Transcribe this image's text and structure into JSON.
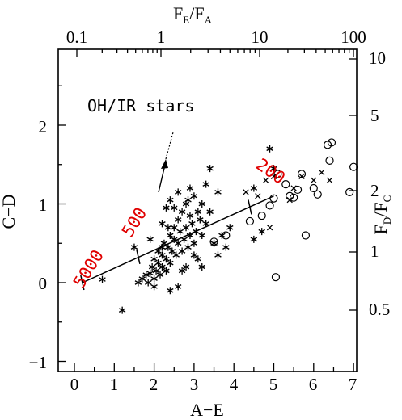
{
  "chart_data": {
    "type": "scatter",
    "annotation": "OH/IR stars",
    "xlabel": "A−E",
    "ylabel": "C−D",
    "top_axis": {
      "label_main": "F",
      "label_sub_1": "E",
      "label_slash": "/F",
      "label_sub_2": "A",
      "ticks": [
        "0.1",
        "1",
        "10",
        "100"
      ]
    },
    "right_axis": {
      "label_main": "F",
      "label_sub_1": "D",
      "label_slash": "/F",
      "label_sub_2": "C",
      "ticks": [
        "10",
        "5",
        "2",
        "1",
        "0.5"
      ]
    },
    "xlim": [
      -0.5,
      7.0
    ],
    "ylim": [
      -1.1,
      2.9
    ],
    "x_ticks": [
      "0",
      "1",
      "2",
      "3",
      "4",
      "5",
      "6",
      "7"
    ],
    "y_ticks": [
      "−1",
      "0",
      "1",
      "2"
    ],
    "temperature_labels": [
      "5000",
      "500",
      "200"
    ],
    "accent_color": "#e00000",
    "blackbody_line": [
      [
        0.2,
        0.0
      ],
      [
        5.0,
        1.1
      ]
    ],
    "series": [
      {
        "marker": "asterisk",
        "points": [
          [
            0.7,
            0.04
          ],
          [
            1.2,
            -0.35
          ],
          [
            1.6,
            0.0
          ],
          [
            1.7,
            0.05
          ],
          [
            1.8,
            0.1
          ],
          [
            1.85,
            0.0
          ],
          [
            1.9,
            0.12
          ],
          [
            1.95,
            0.2
          ],
          [
            2.0,
            0.05
          ],
          [
            2.0,
            0.3
          ],
          [
            2.05,
            0.15
          ],
          [
            2.1,
            0.25
          ],
          [
            2.1,
            0.4
          ],
          [
            2.15,
            0.1
          ],
          [
            2.2,
            0.2
          ],
          [
            2.2,
            0.35
          ],
          [
            2.25,
            0.5
          ],
          [
            2.3,
            0.3
          ],
          [
            2.3,
            0.15
          ],
          [
            2.35,
            0.45
          ],
          [
            2.4,
            0.6
          ],
          [
            2.4,
            0.25
          ],
          [
            2.45,
            0.4
          ],
          [
            2.5,
            0.55
          ],
          [
            2.5,
            0.7
          ],
          [
            2.55,
            0.35
          ],
          [
            2.6,
            0.5
          ],
          [
            2.6,
            0.8
          ],
          [
            2.65,
            0.65
          ],
          [
            2.7,
            0.4
          ],
          [
            2.7,
            0.9
          ],
          [
            2.75,
            0.55
          ],
          [
            2.8,
            0.7
          ],
          [
            2.8,
            1.0
          ],
          [
            2.85,
            0.45
          ],
          [
            2.9,
            0.6
          ],
          [
            2.9,
            0.85
          ],
          [
            2.95,
            0.75
          ],
          [
            3.0,
            0.5
          ],
          [
            3.0,
            1.1
          ],
          [
            3.05,
            0.65
          ],
          [
            3.1,
            0.9
          ],
          [
            3.1,
            0.3
          ],
          [
            3.15,
            0.8
          ],
          [
            3.2,
            0.6
          ],
          [
            3.2,
            1.0
          ],
          [
            3.3,
            0.75
          ],
          [
            3.4,
            0.9
          ],
          [
            3.5,
            0.5
          ],
          [
            3.6,
            0.35
          ],
          [
            3.7,
            0.6
          ],
          [
            3.8,
            0.45
          ],
          [
            3.9,
            0.7
          ],
          [
            2.2,
            0.75
          ],
          [
            2.3,
            0.95
          ],
          [
            2.4,
            1.05
          ],
          [
            2.6,
            1.15
          ],
          [
            2.9,
            1.2
          ],
          [
            3.3,
            1.25
          ],
          [
            1.5,
            0.45
          ],
          [
            1.9,
            0.55
          ],
          [
            2.0,
            -0.05
          ],
          [
            2.4,
            -0.1
          ],
          [
            2.8,
            0.2
          ],
          [
            2.2,
            0.45
          ],
          [
            2.5,
            0.95
          ],
          [
            3.0,
            0.35
          ],
          [
            2.7,
            0.15
          ],
          [
            3.4,
            1.45
          ],
          [
            3.2,
            0.2
          ],
          [
            2.6,
            -0.05
          ],
          [
            2.35,
            0.7
          ],
          [
            2.85,
            1.05
          ],
          [
            3.6,
            1.15
          ],
          [
            4.5,
            0.55
          ],
          [
            4.7,
            0.65
          ],
          [
            4.9,
            1.7
          ],
          [
            4.5,
            1.2
          ],
          [
            5.0,
            1.45
          ]
        ]
      },
      {
        "marker": "cross",
        "points": [
          [
            4.3,
            1.15
          ],
          [
            4.6,
            1.1
          ],
          [
            4.8,
            1.3
          ],
          [
            5.0,
            1.35
          ],
          [
            5.4,
            1.05
          ],
          [
            5.5,
            1.2
          ],
          [
            5.7,
            1.35
          ],
          [
            6.0,
            1.3
          ],
          [
            6.2,
            1.4
          ],
          [
            6.4,
            1.3
          ],
          [
            4.9,
            0.7
          ]
        ]
      },
      {
        "marker": "circle",
        "points": [
          [
            3.5,
            0.52
          ],
          [
            3.8,
            0.6
          ],
          [
            4.4,
            0.78
          ],
          [
            4.7,
            0.85
          ],
          [
            4.9,
            0.98
          ],
          [
            5.0,
            1.07
          ],
          [
            5.05,
            0.07
          ],
          [
            5.1,
            1.38
          ],
          [
            5.3,
            1.25
          ],
          [
            5.4,
            1.1
          ],
          [
            5.5,
            1.08
          ],
          [
            5.6,
            1.18
          ],
          [
            5.8,
            0.6
          ],
          [
            6.0,
            1.2
          ],
          [
            6.1,
            1.12
          ],
          [
            6.35,
            1.75
          ],
          [
            6.45,
            1.78
          ],
          [
            6.4,
            1.55
          ],
          [
            6.9,
            1.15
          ],
          [
            7.0,
            1.47
          ],
          [
            5.7,
            1.38
          ]
        ]
      }
    ]
  }
}
